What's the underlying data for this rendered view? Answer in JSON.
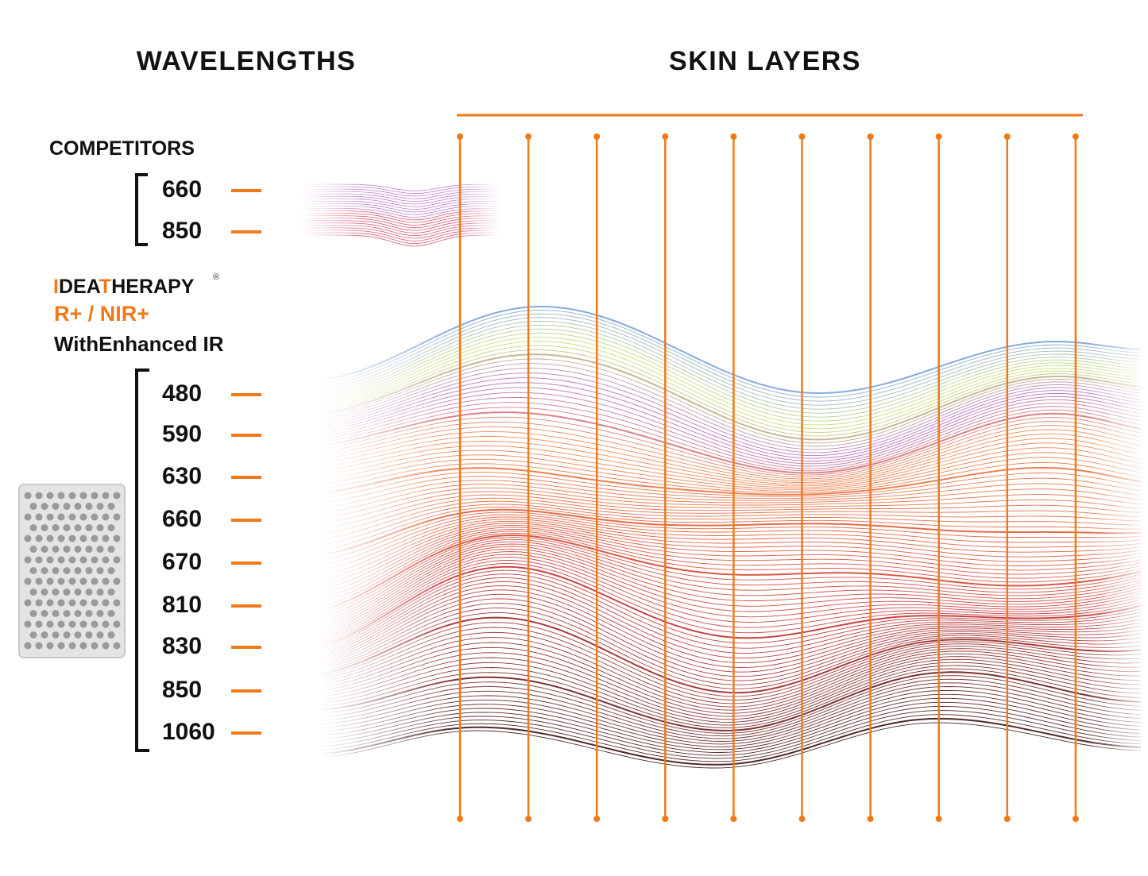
{
  "header": {
    "left_title": "WAVELENGTHS",
    "right_title": "SKIN LAYERS"
  },
  "competitors": {
    "label": "COMPETITORS",
    "wavelengths": [
      "660",
      "850"
    ]
  },
  "brand": {
    "name": "IDEATHERAPY",
    "mark": "®",
    "product": "R+ / NIR+",
    "tagline": "WithEnhanced IR",
    "wavelengths": [
      "480",
      "590",
      "630",
      "660",
      "670",
      "810",
      "830",
      "850",
      "1060"
    ]
  }
}
